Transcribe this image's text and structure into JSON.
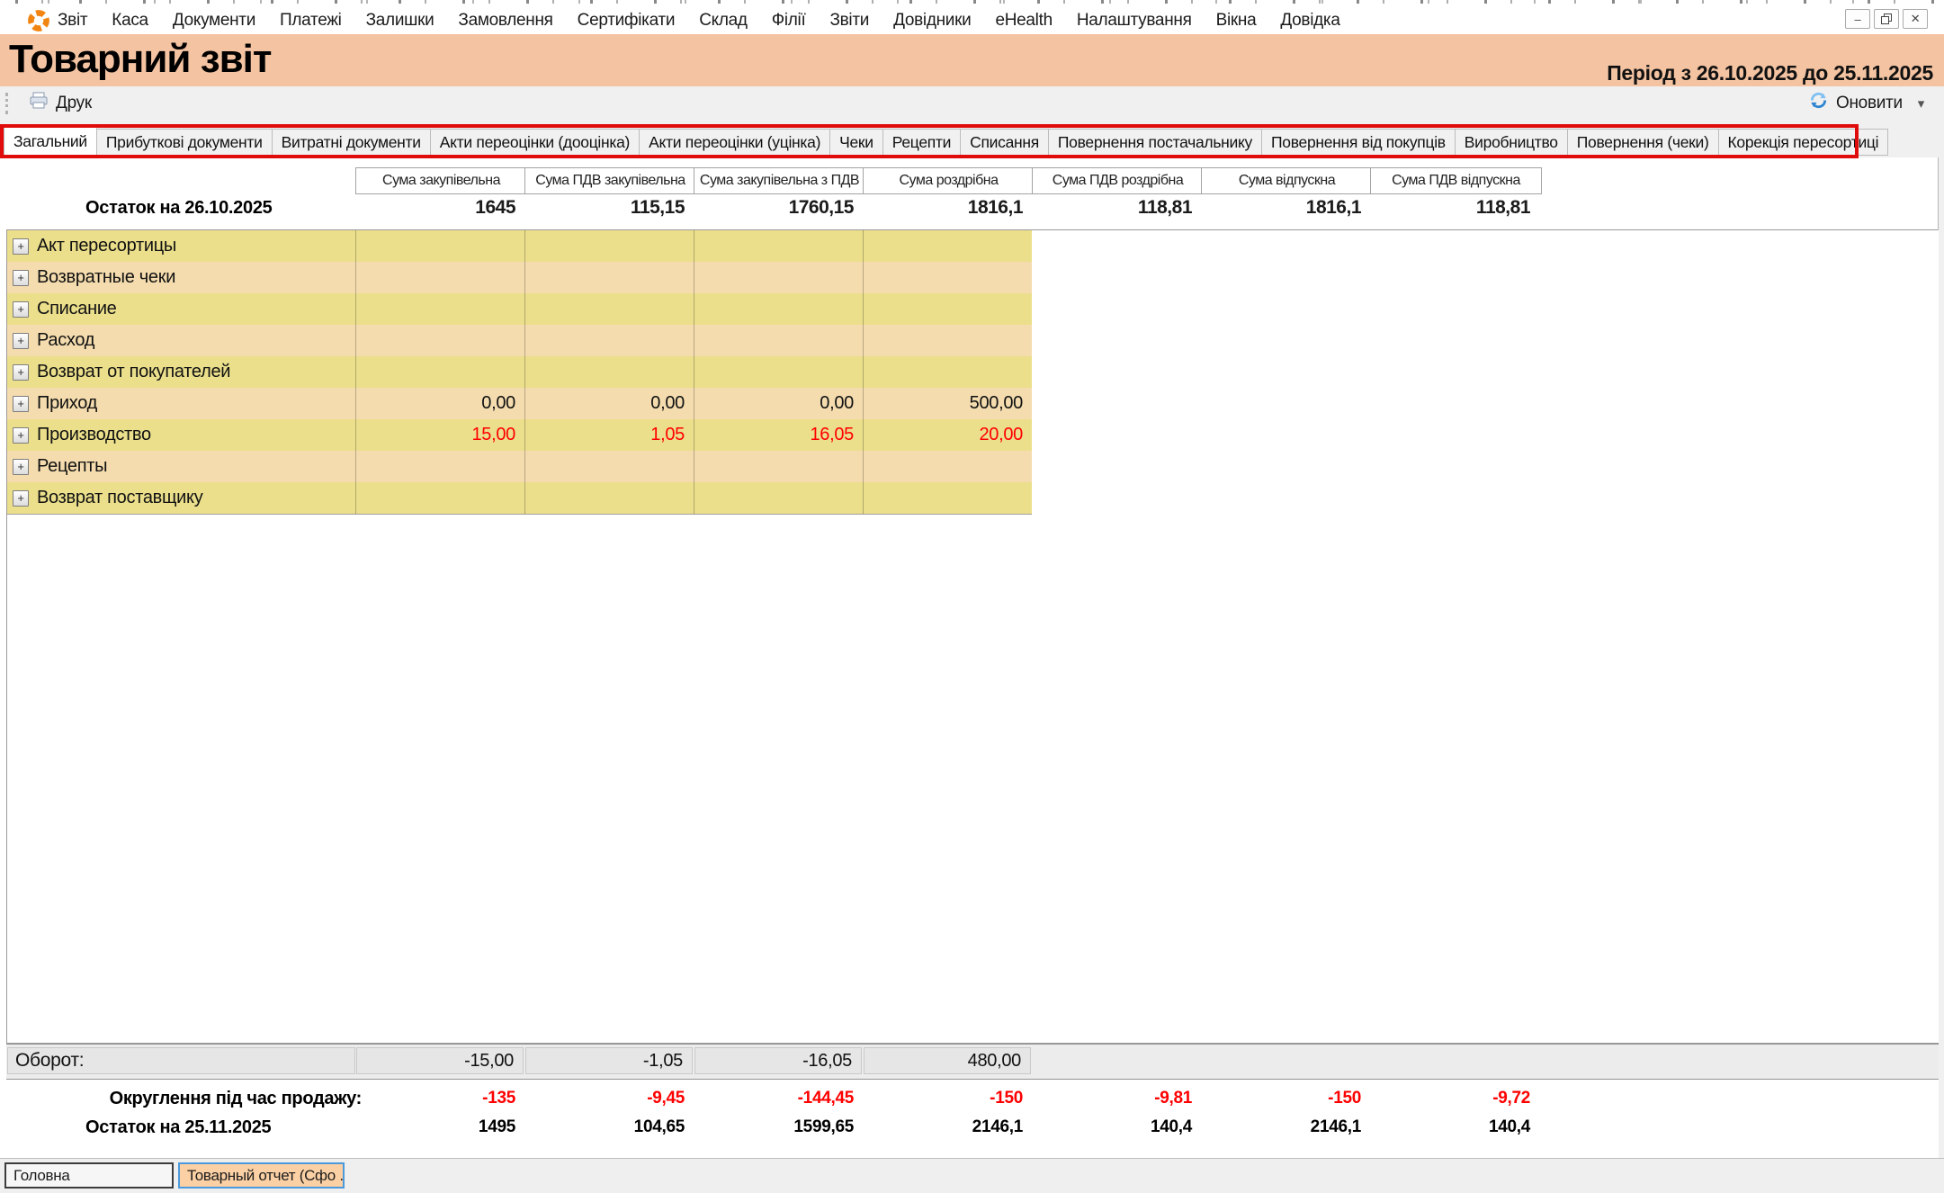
{
  "menu": {
    "items": [
      "Звіт",
      "Каса",
      "Документи",
      "Платежі",
      "Залишки",
      "Замовлення",
      "Сертифікати",
      "Склад",
      "Філії",
      "Звіти",
      "Довідники",
      "eHealth",
      "Налаштування",
      "Вікна",
      "Довідка"
    ]
  },
  "window_controls": {
    "minimize_glyph": "–",
    "close_glyph": "✕"
  },
  "header": {
    "title": "Товарний звіт",
    "period": "Період з 26.10.2025 до 25.11.2025"
  },
  "toolbar": {
    "print": "Друк",
    "refresh": "Оновити",
    "dropdown_glyph": "▾"
  },
  "tabs": [
    {
      "label": "Загальний",
      "active": true
    },
    {
      "label": "Прибуткові документи",
      "active": false
    },
    {
      "label": "Витратні документи",
      "active": false
    },
    {
      "label": "Акти переоцінки (дооцінка)",
      "active": false
    },
    {
      "label": "Акти переоцінки (уцінка)",
      "active": false
    },
    {
      "label": "Чеки",
      "active": false
    },
    {
      "label": "Рецепти",
      "active": false
    },
    {
      "label": "Списання",
      "active": false
    },
    {
      "label": "Повернення постачальнику",
      "active": false
    },
    {
      "label": "Повернення від покупців",
      "active": false
    },
    {
      "label": "Виробництво",
      "active": false
    },
    {
      "label": "Повернення (чеки)",
      "active": false
    },
    {
      "label": "Корекція пересортиці",
      "active": false
    }
  ],
  "report": {
    "columns": [
      "Сума закупівельна",
      "Сума ПДВ закупівельна",
      "Сума закупівельна з ПДВ",
      "Сума роздрібна",
      "Сума ПДВ роздрібна",
      "Сума відпускна",
      "Сума ПДВ відпускна"
    ],
    "opening": {
      "label": "Остаток на 26.10.2025",
      "values": [
        "1645",
        "115,15",
        "1760,15",
        "1816,1",
        "118,81",
        "1816,1",
        "118,81"
      ]
    },
    "rows": [
      {
        "label": "Акт пересортицы",
        "values": [
          "",
          "",
          "",
          ""
        ],
        "negative": false
      },
      {
        "label": "Возвратные чеки",
        "values": [
          "",
          "",
          "",
          ""
        ],
        "negative": false
      },
      {
        "label": "Списание",
        "values": [
          "",
          "",
          "",
          ""
        ],
        "negative": false
      },
      {
        "label": "Расход",
        "values": [
          "",
          "",
          "",
          ""
        ],
        "negative": false
      },
      {
        "label": "Возврат от покупателей",
        "values": [
          "",
          "",
          "",
          ""
        ],
        "negative": false
      },
      {
        "label": "Приход",
        "values": [
          "0,00",
          "0,00",
          "0,00",
          "500,00"
        ],
        "negative": false
      },
      {
        "label": "Производство",
        "values": [
          "15,00",
          "1,05",
          "16,05",
          "20,00"
        ],
        "negative": true
      },
      {
        "label": "Рецепты",
        "values": [
          "",
          "",
          "",
          ""
        ],
        "negative": false
      },
      {
        "label": "Возврат поставщику",
        "values": [
          "",
          "",
          "",
          ""
        ],
        "negative": false
      }
    ],
    "turnover": {
      "label": "Оборот:",
      "values": [
        "-15,00",
        "-1,05",
        "-16,05",
        "480,00"
      ]
    },
    "rounding": {
      "label": "Округлення під час продажу:",
      "values": [
        "-135",
        "-9,45",
        "-144,45",
        "-150",
        "-9,81",
        "-150",
        "-9,72"
      ],
      "negative": true
    },
    "closing": {
      "label": "Остаток на 25.11.2025",
      "values": [
        "1495",
        "104,65",
        "1599,65",
        "2146,1",
        "140,4",
        "2146,1",
        "140,4"
      ]
    }
  },
  "expander_glyph": "+",
  "statusbar": {
    "tabs": [
      {
        "label": "Головна",
        "active": false
      },
      {
        "label": "Товарный отчет (Сфо ..",
        "active": true
      }
    ]
  },
  "colors": {
    "accent": "#F4C3A2",
    "row_yellow": "#EBDF8C",
    "row_tan": "#F4DCAE",
    "neg": "#FF0000",
    "annot": "#E00C0C",
    "tab_blue": "#4A9ADD"
  }
}
